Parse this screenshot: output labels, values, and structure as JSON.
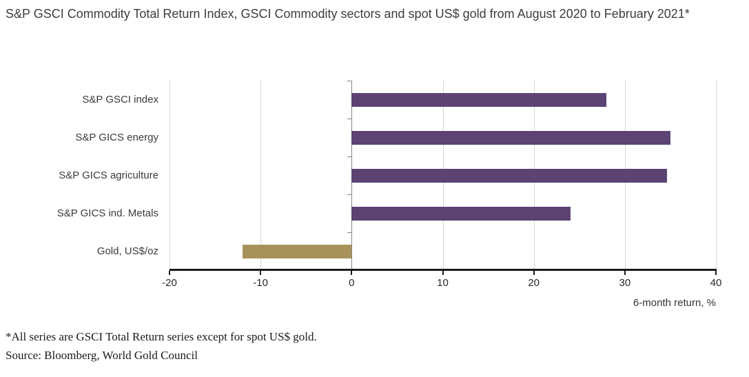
{
  "title": "S&P GSCI Commodity Total Return Index, GSCI Commodity sectors and spot US$ gold from August 2020 to February 2021*",
  "footnote": "*All series are GSCI Total Return series except for spot US$ gold.",
  "source": "Source: Bloomberg, World Gold Council",
  "chart_data": {
    "type": "bar",
    "orientation": "horizontal",
    "title": "S&P GSCI Commodity Total Return Index, GSCI Commodity sectors and spot US$ gold from August 2020 to February 2021*",
    "categories": [
      "S&P GSCI index",
      "S&P GICS energy",
      "S&P GICS agriculture",
      "S&P GICS ind. Metals",
      "Gold, US$/oz"
    ],
    "values": [
      28,
      35,
      34.6,
      24,
      -12
    ],
    "bar_colors": [
      "#5c4373",
      "#5c4373",
      "#5c4373",
      "#5c4373",
      "#a7925a"
    ],
    "xlabel": "6-month return, %",
    "ylabel": "",
    "xlim": [
      -20,
      40
    ],
    "xticks": [
      -20,
      -10,
      0,
      10,
      20,
      30,
      40
    ],
    "grid": true,
    "legend": "none",
    "colors": {
      "purple": "#5c4373",
      "gold": "#a7925a",
      "gridline": "#d6d6d6",
      "zero_line": "#848484",
      "axis": "#1a1a1a"
    }
  }
}
